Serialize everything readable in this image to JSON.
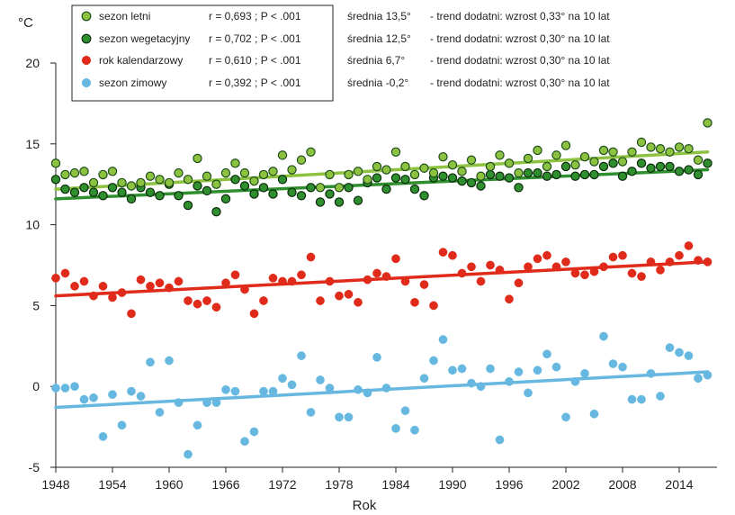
{
  "chart_data": {
    "type": "scatter",
    "title": "",
    "xlabel": "Rok",
    "ylabel": "°C",
    "xlim": [
      1948,
      2018
    ],
    "ylim": [
      -5,
      20
    ],
    "x_ticks": [
      "1948",
      "1954",
      "1960",
      "1966",
      "1972",
      "1978",
      "1984",
      "1990",
      "1996",
      "2002",
      "2008",
      "2014"
    ],
    "y_ticks": [
      "-5",
      "0",
      "5",
      "10",
      "15",
      "20"
    ],
    "grid": false,
    "legend_position": "top-left",
    "x": [
      1948,
      1949,
      1950,
      1951,
      1952,
      1953,
      1954,
      1955,
      1956,
      1957,
      1958,
      1959,
      1960,
      1961,
      1962,
      1963,
      1964,
      1965,
      1966,
      1967,
      1968,
      1969,
      1970,
      1971,
      1972,
      1973,
      1974,
      1975,
      1976,
      1977,
      1978,
      1979,
      1980,
      1981,
      1982,
      1983,
      1984,
      1985,
      1986,
      1987,
      1988,
      1989,
      1990,
      1991,
      1992,
      1993,
      1994,
      1995,
      1996,
      1997,
      1998,
      1999,
      2000,
      2001,
      2002,
      2003,
      2004,
      2005,
      2006,
      2007,
      2008,
      2009,
      2010,
      2011,
      2012,
      2013,
      2014,
      2015,
      2016,
      2017
    ],
    "series": [
      {
        "name": "sezon letni",
        "color": "#8cc23f",
        "marker_stroke": "#1d4d1d",
        "stats": "r = 0,693 ; P < .001",
        "mean": "średnia 13,5°",
        "trend_text": "- trend dodatni: wzrost 0,33° na 10 lat",
        "trend": [
          12.2,
          14.5
        ],
        "values": [
          13.8,
          13.1,
          13.2,
          13.3,
          12.6,
          13.1,
          13.3,
          12.6,
          12.4,
          12.6,
          13.0,
          12.8,
          12.6,
          13.2,
          12.8,
          14.1,
          13.0,
          12.5,
          13.2,
          13.8,
          13.2,
          12.7,
          13.1,
          13.3,
          14.3,
          13.4,
          14.0,
          14.5,
          12.3,
          13.1,
          12.3,
          13.1,
          13.3,
          12.8,
          13.6,
          13.4,
          14.5,
          13.6,
          13.1,
          13.5,
          13.2,
          14.2,
          13.7,
          13.3,
          14.0,
          13.0,
          13.6,
          14.3,
          13.8,
          13.2,
          14.1,
          14.6,
          13.6,
          14.3,
          14.9,
          13.7,
          14.2,
          13.9,
          14.6,
          14.5,
          13.9,
          14.5,
          15.1,
          14.8,
          14.7,
          14.5,
          14.8,
          14.7,
          14.0,
          16.3
        ]
      },
      {
        "name": "sezon wegetacyjny",
        "color": "#2f8f2f",
        "marker_stroke": "#0a2a0a",
        "stats": "r = 0,702 ; P < .001",
        "mean": "średnia 12,5°",
        "trend_text": "- trend dodatni: wzrost 0,30° na 10 lat",
        "trend": [
          11.6,
          13.4
        ],
        "values": [
          12.8,
          12.2,
          12.0,
          12.3,
          12.0,
          11.8,
          12.3,
          12.0,
          11.6,
          12.3,
          12.0,
          11.8,
          12.5,
          11.8,
          11.2,
          12.4,
          12.1,
          10.8,
          11.6,
          12.8,
          12.4,
          11.9,
          12.3,
          11.9,
          12.8,
          12.0,
          11.8,
          12.3,
          11.4,
          11.9,
          11.4,
          12.3,
          11.5,
          12.6,
          12.9,
          12.2,
          12.9,
          12.8,
          12.2,
          11.8,
          12.9,
          13.0,
          12.9,
          12.7,
          12.6,
          12.4,
          13.1,
          13.0,
          12.9,
          12.3,
          13.2,
          13.2,
          13.0,
          13.1,
          13.6,
          13.0,
          13.1,
          13.1,
          13.6,
          13.8,
          13.0,
          13.3,
          13.8,
          13.5,
          13.6,
          13.6,
          13.3,
          13.4,
          13.1,
          13.8
        ]
      },
      {
        "name": "rok kalendarzowy",
        "color": "#e02a1a",
        "marker_stroke": "#e02a1a",
        "stats": "r = 0,610 ; P < .001",
        "mean": "średnia 6,7°",
        "trend_text": "- trend dodatni: wzrost 0,30° na 10 lat",
        "trend": [
          5.6,
          7.7
        ],
        "values": [
          6.7,
          7.0,
          6.2,
          6.5,
          5.6,
          6.2,
          5.5,
          5.8,
          4.5,
          6.6,
          6.2,
          6.4,
          6.1,
          6.5,
          5.3,
          5.1,
          5.3,
          4.9,
          6.4,
          6.9,
          6.0,
          4.5,
          5.3,
          6.7,
          6.5,
          6.5,
          6.9,
          8.0,
          5.3,
          6.5,
          5.6,
          5.7,
          5.2,
          6.6,
          7.0,
          6.8,
          7.9,
          6.5,
          5.2,
          6.3,
          5.0,
          8.3,
          8.1,
          7.0,
          7.4,
          6.5,
          7.5,
          7.2,
          5.4,
          6.4,
          7.4,
          7.9,
          8.1,
          7.4,
          7.7,
          7.0,
          6.9,
          7.1,
          7.4,
          8.0,
          8.1,
          7.0,
          6.8,
          7.7,
          7.2,
          7.7,
          8.1,
          8.7,
          7.8,
          7.7
        ]
      },
      {
        "name": "sezon zimowy",
        "color": "#66b8e0",
        "marker_stroke": "#66b8e0",
        "stats": "r = 0,392 ; P < .001",
        "mean": "średnia -0,2°",
        "trend_text": "- trend dodatni: wzrost 0,30° na 10 lat",
        "trend": [
          -1.3,
          0.9
        ],
        "values": [
          -0.1,
          -0.1,
          0.0,
          -0.8,
          -0.7,
          -3.1,
          -0.5,
          -2.4,
          -0.3,
          -0.6,
          1.5,
          -1.6,
          1.6,
          -1.0,
          -4.2,
          -2.4,
          -1.0,
          -1.0,
          -0.2,
          -0.3,
          -3.4,
          -2.8,
          -0.3,
          -0.3,
          0.5,
          0.1,
          1.9,
          -1.6,
          0.4,
          -0.1,
          -1.9,
          -1.9,
          -0.2,
          -0.4,
          1.8,
          -0.1,
          -2.6,
          -1.5,
          -2.7,
          0.5,
          1.6,
          2.9,
          1.0,
          1.1,
          0.2,
          0.0,
          1.1,
          -3.3,
          0.3,
          0.9,
          -0.4,
          1.0,
          2.0,
          1.2,
          -1.9,
          0.3,
          0.8,
          -1.7,
          3.1,
          1.4,
          1.2,
          -0.8,
          -0.8,
          0.8,
          -0.6,
          2.4,
          2.1,
          1.9,
          0.5,
          0.7
        ]
      }
    ]
  }
}
